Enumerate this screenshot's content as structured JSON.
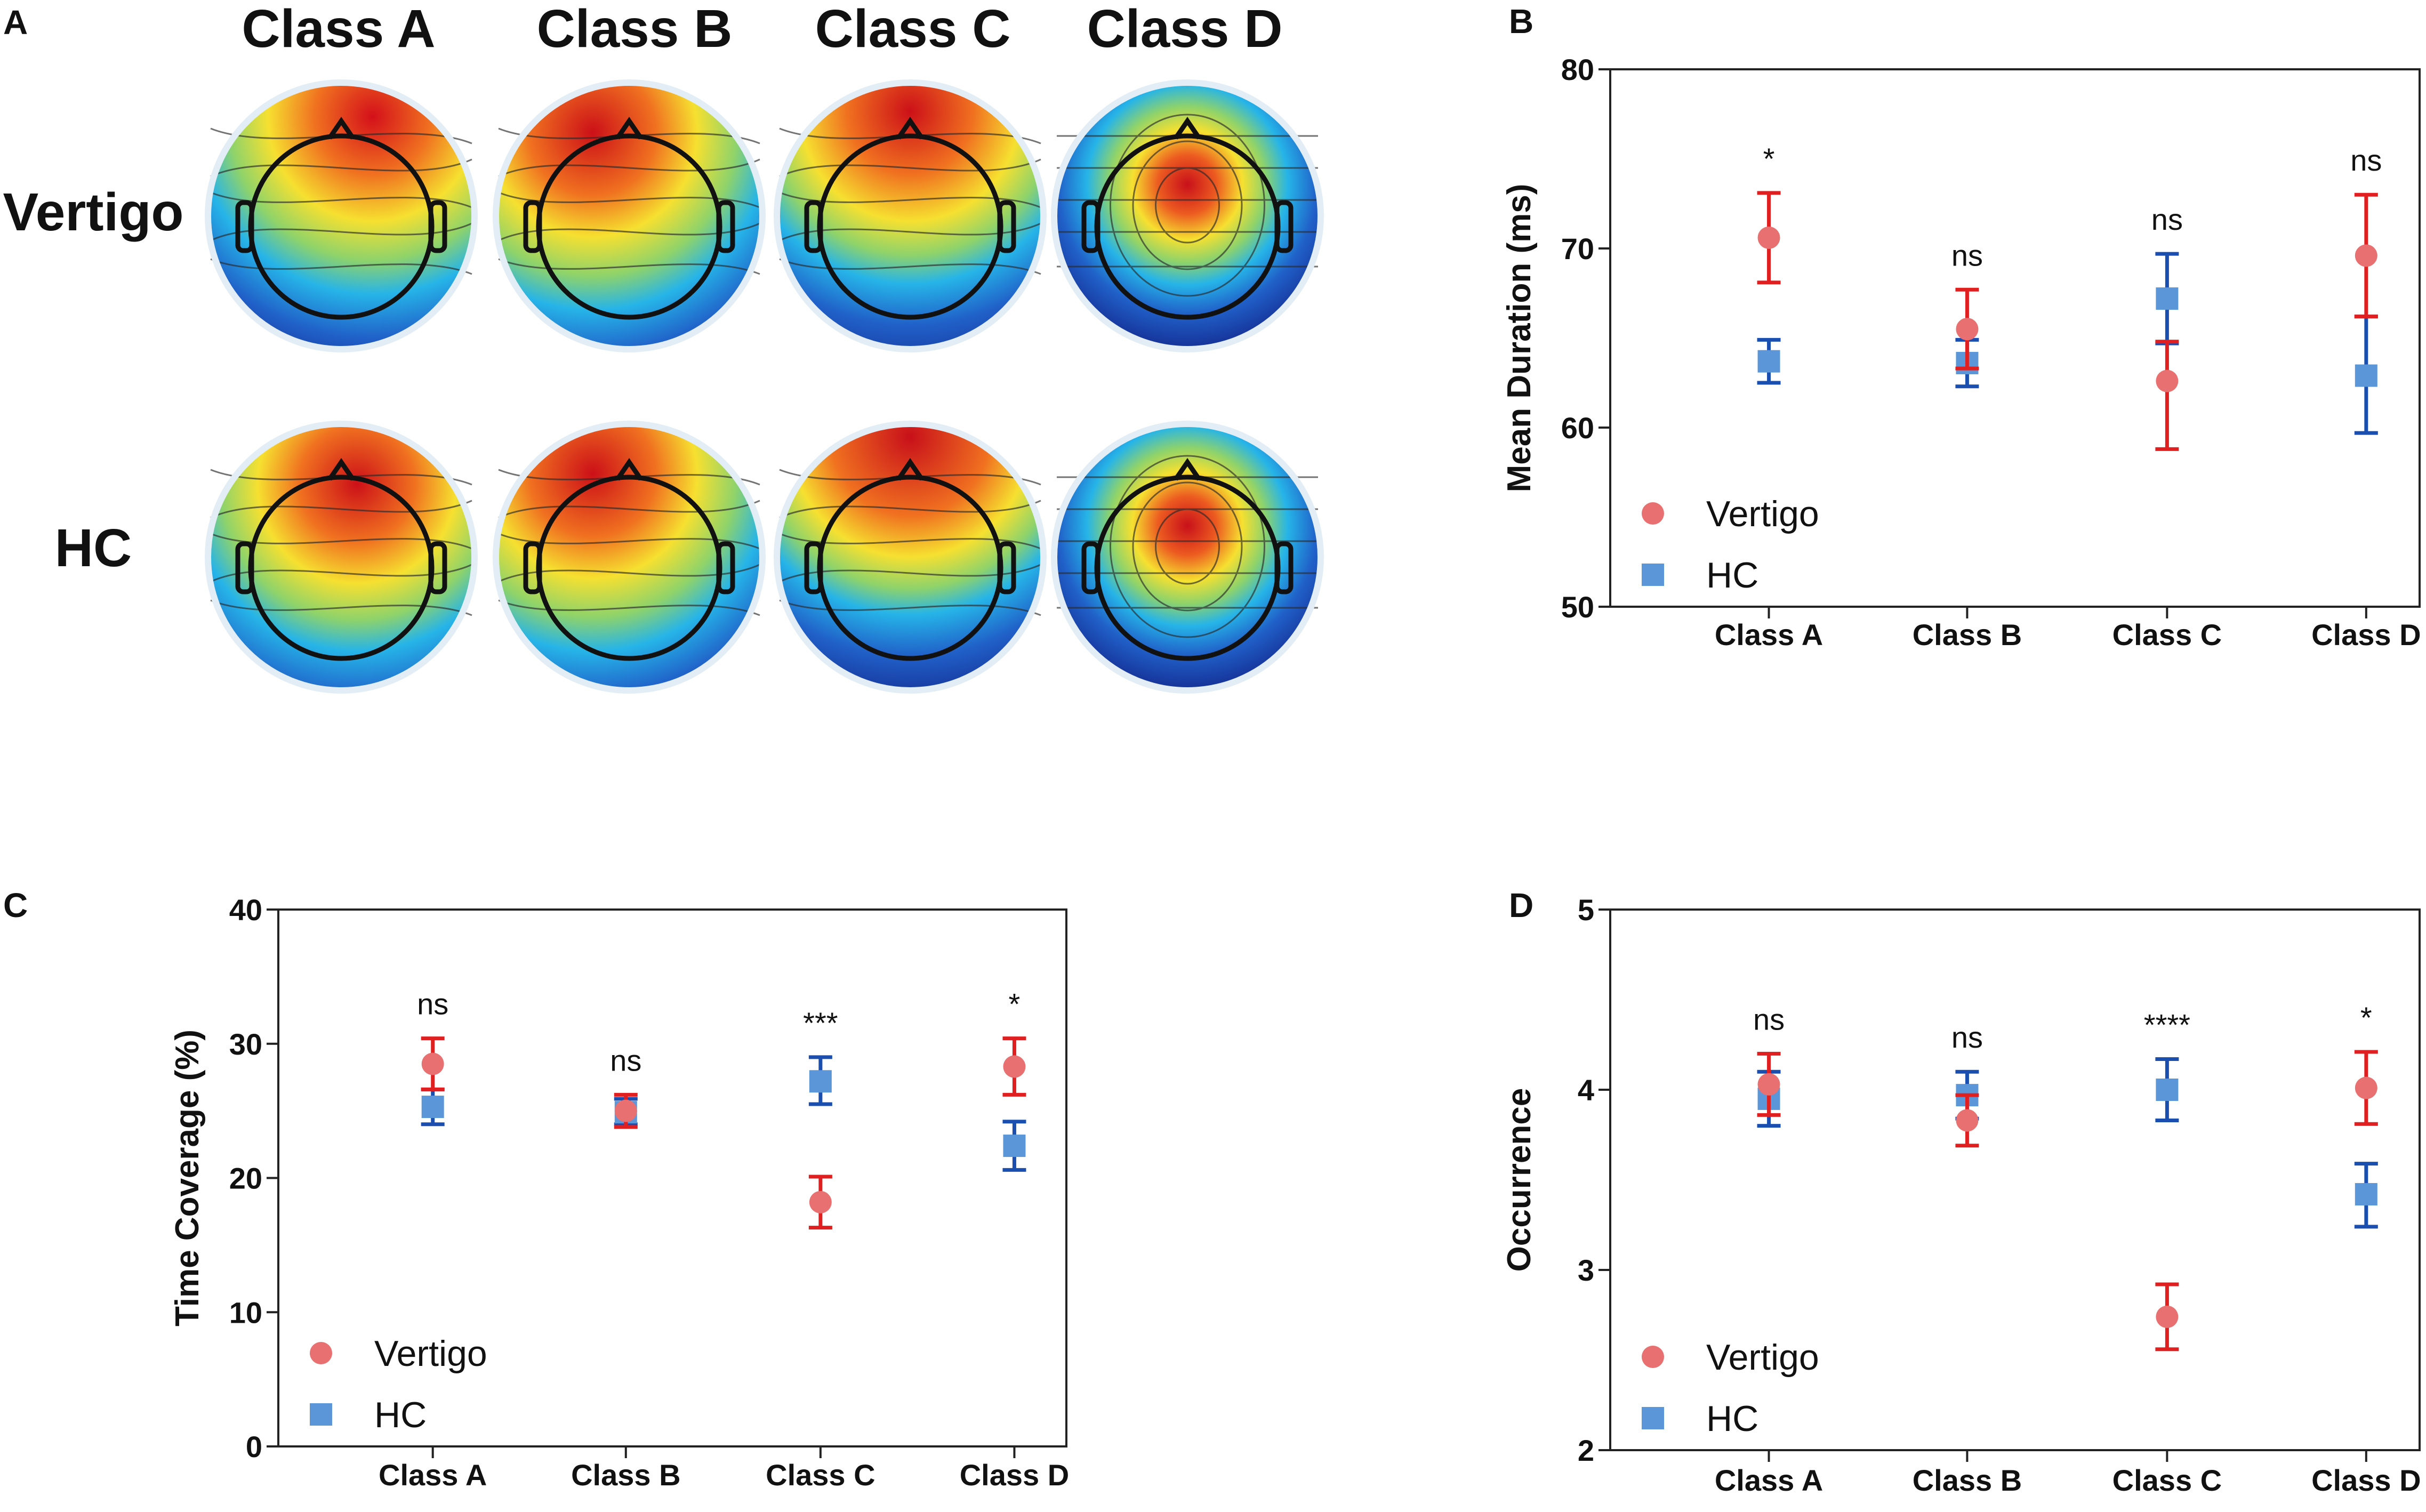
{
  "panel_a": {
    "letter": "A",
    "class_titles": [
      "Class A",
      "Class B",
      "Class C",
      "Class D"
    ],
    "row_labels": [
      {
        "text": "Vertigo",
        "color": "#e5191c"
      },
      {
        "text": "HC",
        "color": "#1f6fbf"
      }
    ],
    "maps": [
      [
        "frontal-right positive, posterior-left negative",
        "frontal-left positive, posterior-right negative",
        "frontal positive, occipital negative",
        "central positive, peripheral negative"
      ],
      [
        "frontal-right positive, posterior negative",
        "frontal-left positive, posterior-right negative",
        "frontal positive, occipital negative",
        "central positive, peripheral negative"
      ]
    ]
  },
  "colors": {
    "vertigo_marker": "#e97070",
    "vertigo_errorbar": "#e02020",
    "hc_marker": "#5a96d8",
    "hc_errorbar": "#1a4fb0"
  },
  "chart_data": [
    {
      "panel": "B",
      "type": "scatter",
      "ylabel": "Mean Duration (ms)",
      "xlabel": "",
      "categories": [
        "Class A",
        "Class B",
        "Class C",
        "Class D"
      ],
      "ylim": [
        50,
        80
      ],
      "yticks": [
        50,
        60,
        70,
        80
      ],
      "legend": "bottom-left",
      "significance": [
        "*",
        "ns",
        "ns",
        "ns"
      ],
      "series": [
        {
          "name": "Vertigo",
          "marker": "circle",
          "values": [
            70.6,
            65.5,
            62.6,
            69.6
          ],
          "lower": [
            68.1,
            63.3,
            58.8,
            66.2
          ],
          "upper": [
            73.1,
            67.7,
            64.8,
            73.0
          ]
        },
        {
          "name": "HC",
          "marker": "square",
          "values": [
            63.7,
            63.6,
            67.2,
            62.9
          ],
          "lower": [
            62.5,
            62.3,
            64.7,
            59.7
          ],
          "upper": [
            64.9,
            64.9,
            69.7,
            66.2
          ]
        }
      ]
    },
    {
      "panel": "C",
      "type": "scatter",
      "ylabel": "Time Coverage (%)",
      "xlabel": "",
      "categories": [
        "Class A",
        "Class B",
        "Class C",
        "Class D"
      ],
      "ylim": [
        0,
        40
      ],
      "yticks": [
        0,
        10,
        20,
        30,
        40
      ],
      "legend": "bottom-left",
      "significance": [
        "ns",
        "ns",
        "***",
        "*"
      ],
      "series": [
        {
          "name": "Vertigo",
          "marker": "circle",
          "values": [
            28.5,
            25.0,
            18.2,
            28.3
          ],
          "lower": [
            26.6,
            23.8,
            16.3,
            26.2
          ],
          "upper": [
            30.4,
            26.2,
            20.1,
            30.4
          ]
        },
        {
          "name": "HC",
          "marker": "square",
          "values": [
            25.3,
            24.9,
            27.2,
            22.4
          ],
          "lower": [
            24.0,
            24.0,
            25.5,
            20.6
          ],
          "upper": [
            26.6,
            25.9,
            29.0,
            24.2
          ]
        }
      ]
    },
    {
      "panel": "D",
      "type": "scatter",
      "ylabel": "Occurrence",
      "xlabel": "",
      "categories": [
        "Class A",
        "Class B",
        "Class C",
        "Class D"
      ],
      "ylim": [
        2,
        5
      ],
      "yticks": [
        2,
        3,
        4,
        5
      ],
      "legend": "bottom-left",
      "significance": [
        "ns",
        "ns",
        "****",
        "*"
      ],
      "series": [
        {
          "name": "Vertigo",
          "marker": "circle",
          "values": [
            4.03,
            3.83,
            2.74,
            4.01
          ],
          "lower": [
            3.86,
            3.69,
            2.56,
            3.81
          ],
          "upper": [
            4.2,
            3.97,
            2.92,
            4.21
          ]
        },
        {
          "name": "HC",
          "marker": "square",
          "values": [
            3.95,
            3.97,
            4.0,
            3.42
          ],
          "lower": [
            3.8,
            3.84,
            3.83,
            3.24
          ],
          "upper": [
            4.1,
            4.1,
            4.17,
            3.59
          ]
        }
      ]
    }
  ]
}
